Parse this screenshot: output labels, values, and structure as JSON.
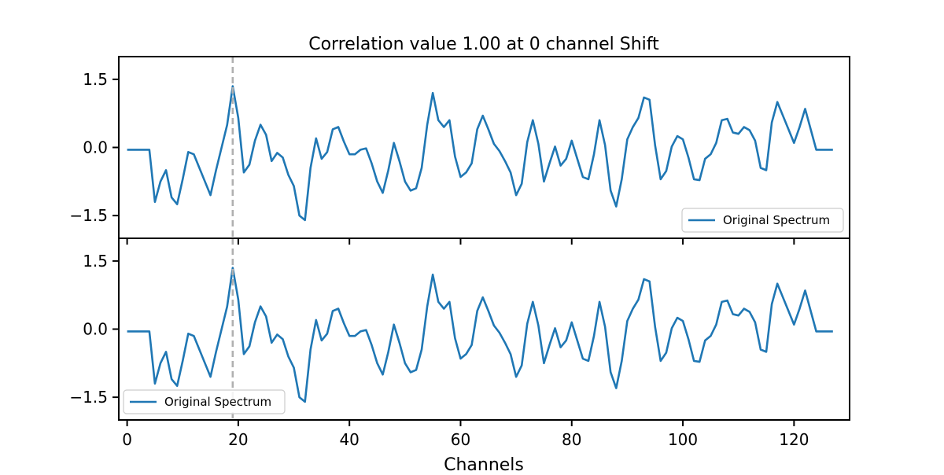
{
  "chart_data": {
    "type": "line",
    "title": "Correlation value 1.00 at 0 channel Shift",
    "xlabel": "Channels",
    "xlim": [
      -1.5,
      130
    ],
    "ylim": [
      -2.0,
      2.0
    ],
    "x_ticks": [
      0,
      20,
      40,
      60,
      80,
      100,
      120
    ],
    "y_ticks": [
      -1.5,
      0.0,
      1.5
    ],
    "y_tick_labels": [
      "−1.5",
      "0.0",
      "1.5"
    ],
    "marker_line_x": 19,
    "grid": false,
    "panels": [
      {
        "legend_position": "lower-right",
        "series": [
          {
            "name": "Original Spectrum",
            "color": "#1f77b4",
            "x_start": 0,
            "values": [
              -0.05,
              -0.05,
              -0.05,
              -0.05,
              -0.05,
              -1.2,
              -0.75,
              -0.5,
              -1.1,
              -1.25,
              -0.7,
              -0.1,
              -0.15,
              -0.45,
              -0.75,
              -1.05,
              -0.5,
              0.0,
              0.5,
              1.35,
              0.65,
              -0.55,
              -0.38,
              0.15,
              0.5,
              0.28,
              -0.3,
              -0.12,
              -0.22,
              -0.6,
              -0.85,
              -1.5,
              -1.6,
              -0.45,
              0.2,
              -0.25,
              -0.1,
              0.4,
              0.45,
              0.13,
              -0.15,
              -0.15,
              -0.05,
              -0.02,
              -0.35,
              -0.75,
              -1.0,
              -0.5,
              0.1,
              -0.3,
              -0.75,
              -0.95,
              -0.9,
              -0.45,
              0.5,
              1.2,
              0.6,
              0.45,
              0.6,
              -0.2,
              -0.65,
              -0.55,
              -0.35,
              0.4,
              0.7,
              0.4,
              0.08,
              -0.08,
              -0.3,
              -0.55,
              -1.05,
              -0.8,
              0.12,
              0.6,
              0.08,
              -0.75,
              -0.35,
              0.02,
              -0.4,
              -0.25,
              0.15,
              -0.25,
              -0.65,
              -0.7,
              -0.15,
              0.6,
              0.05,
              -0.95,
              -1.3,
              -0.7,
              0.18,
              0.45,
              0.65,
              1.1,
              1.05,
              0.05,
              -0.7,
              -0.52,
              0.02,
              0.25,
              0.18,
              -0.22,
              -0.7,
              -0.72,
              -0.25,
              -0.15,
              0.1,
              0.6,
              0.63,
              0.33,
              0.3,
              0.45,
              0.38,
              0.15,
              -0.45,
              -0.5,
              0.55,
              1.0,
              0.7,
              0.4,
              0.1,
              0.45,
              0.85,
              0.4,
              -0.05,
              -0.05,
              -0.05,
              -0.05
            ]
          }
        ]
      },
      {
        "legend_position": "lower-left",
        "series": [
          {
            "name": "Original Spectrum",
            "color": "#1f77b4",
            "x_start": 0,
            "values": [
              -0.05,
              -0.05,
              -0.05,
              -0.05,
              -0.05,
              -1.2,
              -0.75,
              -0.5,
              -1.1,
              -1.25,
              -0.7,
              -0.1,
              -0.15,
              -0.45,
              -0.75,
              -1.05,
              -0.5,
              0.0,
              0.5,
              1.35,
              0.65,
              -0.55,
              -0.38,
              0.15,
              0.5,
              0.28,
              -0.3,
              -0.12,
              -0.22,
              -0.6,
              -0.85,
              -1.5,
              -1.6,
              -0.45,
              0.2,
              -0.25,
              -0.1,
              0.4,
              0.45,
              0.13,
              -0.15,
              -0.15,
              -0.05,
              -0.02,
              -0.35,
              -0.75,
              -1.0,
              -0.5,
              0.1,
              -0.3,
              -0.75,
              -0.95,
              -0.9,
              -0.45,
              0.5,
              1.2,
              0.6,
              0.45,
              0.6,
              -0.2,
              -0.65,
              -0.55,
              -0.35,
              0.4,
              0.7,
              0.4,
              0.08,
              -0.08,
              -0.3,
              -0.55,
              -1.05,
              -0.8,
              0.12,
              0.6,
              0.08,
              -0.75,
              -0.35,
              0.02,
              -0.4,
              -0.25,
              0.15,
              -0.25,
              -0.65,
              -0.7,
              -0.15,
              0.6,
              0.05,
              -0.95,
              -1.3,
              -0.7,
              0.18,
              0.45,
              0.65,
              1.1,
              1.05,
              0.05,
              -0.7,
              -0.52,
              0.02,
              0.25,
              0.18,
              -0.22,
              -0.7,
              -0.72,
              -0.25,
              -0.15,
              0.1,
              0.6,
              0.63,
              0.33,
              0.3,
              0.45,
              0.38,
              0.15,
              -0.45,
              -0.5,
              0.55,
              1.0,
              0.7,
              0.4,
              0.1,
              0.45,
              0.85,
              0.4,
              -0.05,
              -0.05,
              -0.05,
              -0.05
            ]
          }
        ]
      }
    ]
  }
}
